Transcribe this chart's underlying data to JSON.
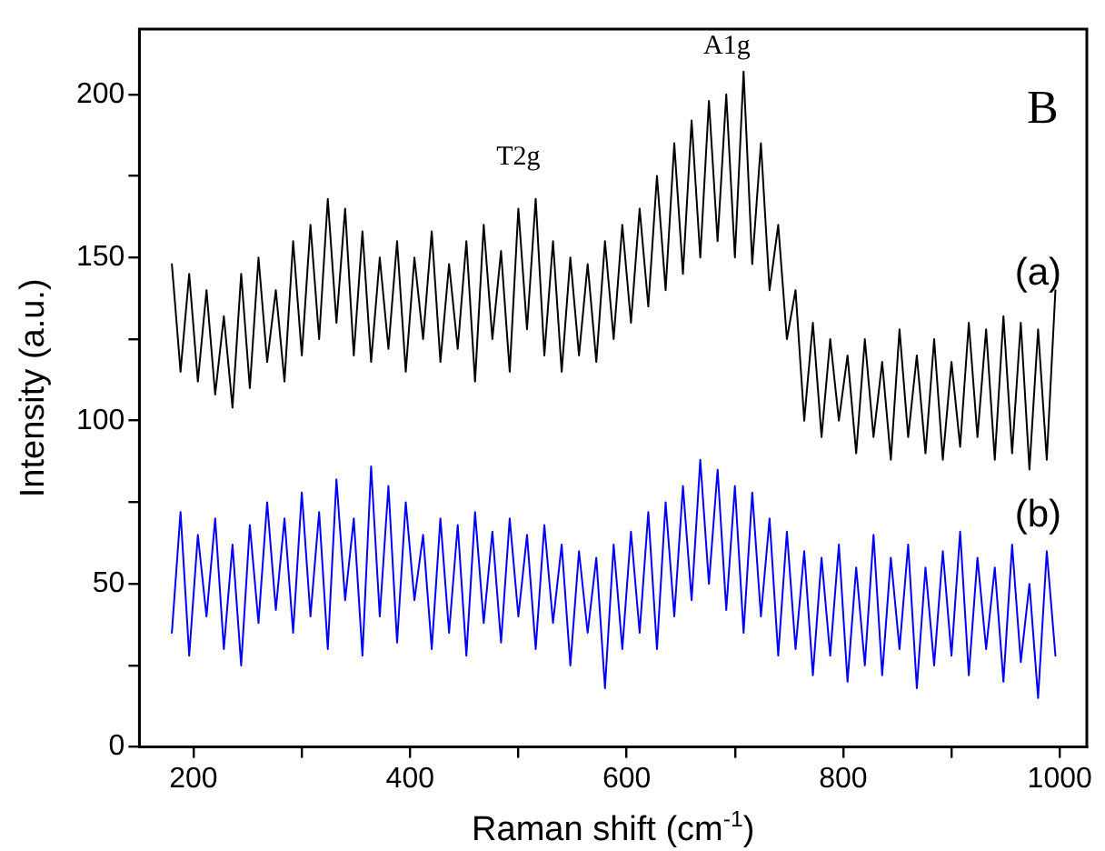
{
  "chart_data": {
    "type": "line",
    "xlabel": "Raman shift (cm$^{-1}$)",
    "ylabel": "Intensity (a.u.)",
    "annotations": [
      "B",
      "T2g",
      "A1g"
    ],
    "x": [
      180,
      188,
      196,
      204,
      212,
      220,
      228,
      236,
      244,
      252,
      260,
      268,
      276,
      284,
      292,
      300,
      308,
      316,
      324,
      332,
      340,
      348,
      356,
      364,
      372,
      380,
      388,
      396,
      404,
      412,
      420,
      428,
      436,
      444,
      452,
      460,
      468,
      476,
      484,
      492,
      500,
      508,
      516,
      524,
      532,
      540,
      548,
      556,
      564,
      572,
      580,
      588,
      596,
      604,
      612,
      620,
      628,
      636,
      644,
      652,
      660,
      668,
      676,
      684,
      692,
      700,
      708,
      716,
      724,
      732,
      740,
      748,
      756,
      764,
      772,
      780,
      788,
      796,
      804,
      812,
      820,
      828,
      836,
      844,
      852,
      860,
      868,
      876,
      884,
      892,
      900,
      908,
      916,
      924,
      932,
      940,
      948,
      956,
      964,
      972,
      980,
      988,
      996
    ],
    "series": [
      {
        "name": "(a)",
        "color": "#000000",
        "values": [
          148,
          115,
          145,
          112,
          140,
          108,
          132,
          104,
          145,
          110,
          150,
          118,
          140,
          112,
          155,
          120,
          160,
          125,
          168,
          130,
          165,
          120,
          158,
          118,
          150,
          122,
          155,
          115,
          150,
          125,
          158,
          118,
          148,
          122,
          155,
          112,
          160,
          125,
          152,
          115,
          165,
          128,
          168,
          120,
          155,
          115,
          150,
          120,
          148,
          118,
          155,
          125,
          160,
          130,
          165,
          135,
          175,
          140,
          185,
          145,
          192,
          150,
          198,
          155,
          200,
          150,
          207,
          148,
          185,
          140,
          160,
          125,
          140,
          100,
          130,
          95,
          125,
          100,
          120,
          90,
          125,
          95,
          118,
          88,
          128,
          95,
          120,
          90,
          125,
          88,
          118,
          92,
          130,
          95,
          128,
          88,
          132,
          90,
          130,
          85,
          128,
          88,
          140
        ]
      },
      {
        "name": "(b)",
        "color": "#0000ff",
        "values": [
          35,
          72,
          28,
          65,
          40,
          70,
          30,
          62,
          25,
          68,
          38,
          75,
          42,
          70,
          35,
          78,
          40,
          72,
          30,
          82,
          45,
          70,
          28,
          86,
          40,
          80,
          32,
          75,
          45,
          65,
          30,
          70,
          35,
          68,
          28,
          72,
          38,
          66,
          32,
          70,
          40,
          65,
          30,
          68,
          38,
          62,
          25,
          60,
          35,
          58,
          18,
          62,
          30,
          66,
          35,
          72,
          30,
          75,
          40,
          80,
          45,
          88,
          50,
          85,
          42,
          80,
          35,
          78,
          40,
          70,
          28,
          66,
          30,
          60,
          22,
          58,
          28,
          62,
          20,
          55,
          25,
          65,
          22,
          58,
          30,
          62,
          18,
          55,
          25,
          60,
          28,
          66,
          22,
          58,
          30,
          55,
          20,
          62,
          26,
          50,
          15,
          60,
          28
        ]
      }
    ],
    "xlim": [
      150,
      1025
    ],
    "xticks": [
      200,
      {
        "value": 300,
        "label": null
      },
      400,
      {
        "value": 500,
        "label": null
      },
      600,
      {
        "value": 700,
        "label": null
      },
      800,
      {
        "value": 900,
        "label": null
      },
      1000
    ],
    "ylim": [
      0,
      220
    ],
    "yticks": [
      0,
      {
        "value": 25,
        "label": null
      },
      50,
      {
        "value": 75,
        "label": null
      },
      100,
      {
        "value": 125,
        "label": null
      },
      150,
      {
        "value": 175,
        "label": null
      },
      200
    ],
    "grid": false,
    "legend": false,
    "marker": "none",
    "line_style": "solid"
  }
}
